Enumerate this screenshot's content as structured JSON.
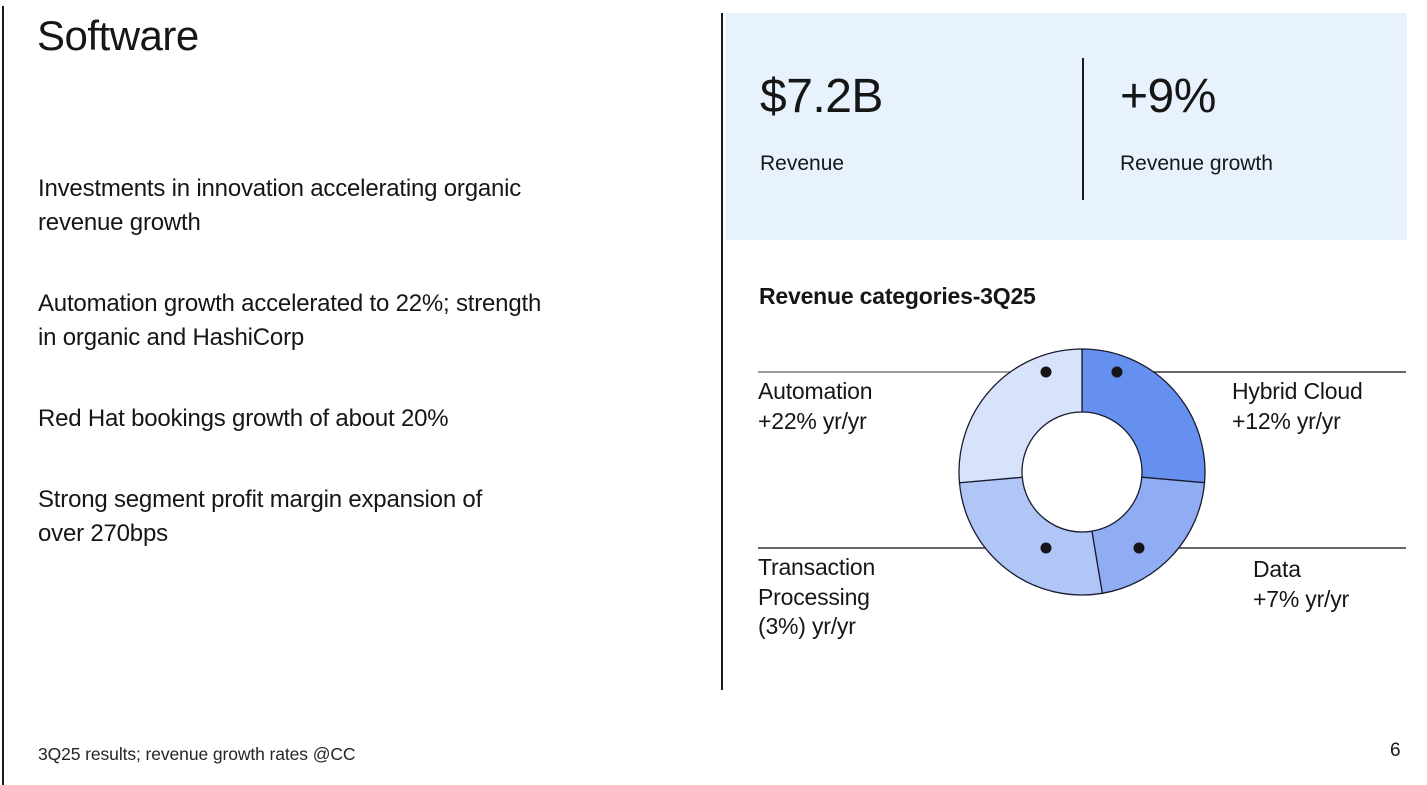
{
  "slide": {
    "title": "Software",
    "bullets": [
      "Investments in innovation accelerating organic\nrevenue growth",
      "Automation growth accelerated to 22%; strength\nin organic and HashiCorp",
      "Red Hat bookings growth of about 20%",
      "Strong segment profit margin expansion of\nover 270bps"
    ],
    "footer": "3Q25 results; revenue growth rates @CC",
    "page_number": "6"
  },
  "stats": {
    "revenue_value": "$7.2B",
    "revenue_label": "Revenue",
    "growth_value": "+9%",
    "growth_label": "Revenue growth"
  },
  "chart_heading": "Revenue categories-3Q25",
  "chart_data": {
    "type": "pie",
    "subtype": "donut",
    "title": "Revenue categories-3Q25",
    "legend_position": "callout-labels",
    "segments": [
      {
        "label": "Hybrid Cloud",
        "growth": "+12% yr/yr",
        "share_pct_est": 26,
        "start_deg": 0,
        "end_deg": 95,
        "color": "#6690F0"
      },
      {
        "label": "Data",
        "growth": "+7% yr/yr",
        "share_pct_est": 21,
        "start_deg": 95,
        "end_deg": 170.5,
        "color": "#90ACF3"
      },
      {
        "label": "Transaction Processing",
        "growth": "(3%) yr/yr",
        "share_pct_est": 26,
        "start_deg": 170.5,
        "end_deg": 265,
        "color": "#AFC6F7"
      },
      {
        "label": "Automation",
        "growth": "+22% yr/yr",
        "share_pct_est": 27,
        "start_deg": 265,
        "end_deg": 360,
        "color": "#D6E3FB"
      }
    ]
  },
  "callouts": {
    "automation": {
      "line1": "Automation",
      "line2": "+22% yr/yr"
    },
    "hybrid_cloud": {
      "line1": "Hybrid Cloud",
      "line2": "+12% yr/yr"
    },
    "transaction_processing": {
      "line1": "Transaction",
      "line2": "Processing",
      "line3": "(3%) yr/yr"
    },
    "data": {
      "line1": "Data",
      "line2": "+7% yr/yr"
    }
  },
  "colors": {
    "stat_box_bg": "#E7F2FC",
    "text": "#161616",
    "donut_stroke": "#1c1c30"
  }
}
